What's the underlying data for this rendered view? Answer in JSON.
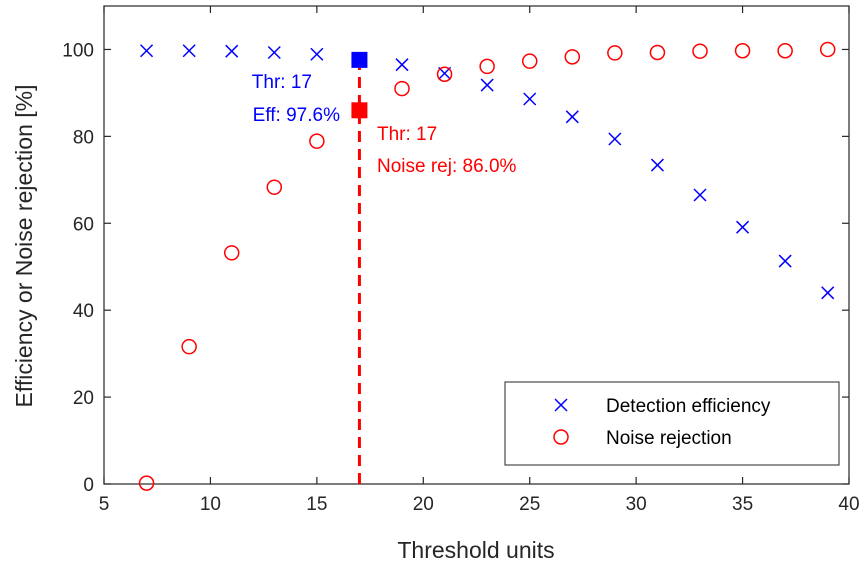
{
  "chart_data": {
    "type": "scatter",
    "xlabel": "Threshold units",
    "ylabel": "Efficiency or Noise rejection [%]",
    "xlim": [
      5,
      40
    ],
    "ylim": [
      0,
      110
    ],
    "xticks": [
      5,
      10,
      15,
      20,
      25,
      30,
      35,
      40
    ],
    "yticks": [
      0,
      20,
      40,
      60,
      80,
      100
    ],
    "legend_position": "bottom-right",
    "grid": false,
    "series": [
      {
        "name": "Detection efficiency",
        "marker": "x",
        "color": "#0000ff",
        "x": [
          7,
          9,
          11,
          13,
          15,
          17,
          19,
          21,
          23,
          25,
          27,
          29,
          31,
          33,
          35,
          37,
          39
        ],
        "y": [
          99.7,
          99.7,
          99.6,
          99.3,
          98.9,
          97.6,
          96.5,
          94.5,
          91.8,
          88.6,
          84.5,
          79.4,
          73.4,
          66.5,
          59.1,
          51.3,
          44.0
        ]
      },
      {
        "name": "Noise rejection",
        "marker": "o",
        "color": "#ff0000",
        "x": [
          7,
          9,
          11,
          13,
          15,
          17,
          19,
          21,
          23,
          25,
          27,
          29,
          31,
          33,
          35,
          37,
          39
        ],
        "y": [
          0.2,
          31.6,
          53.2,
          68.3,
          78.9,
          86.0,
          91.0,
          94.3,
          96.1,
          97.3,
          98.3,
          99.2,
          99.3,
          99.6,
          99.7,
          99.7,
          100.0
        ]
      }
    ],
    "threshold_line": {
      "x": 17,
      "color": "#ff0000"
    },
    "highlights": [
      {
        "series": "Detection efficiency",
        "x": 17,
        "y": 97.6,
        "color": "#0000ff",
        "label_line1": "Thr: 17",
        "label_line2": "Eff: 97.6%"
      },
      {
        "series": "Noise rejection",
        "x": 17,
        "y": 86.0,
        "color": "#ff0000",
        "label_line1": "Thr: 17",
        "label_line2": "Noise rej: 86.0%"
      }
    ]
  }
}
